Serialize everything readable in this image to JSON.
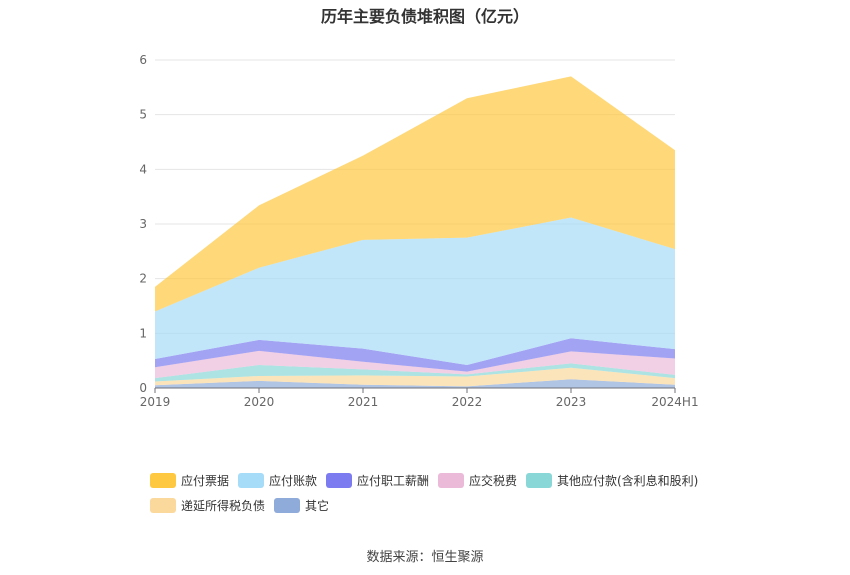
{
  "chart_data": {
    "type": "area",
    "stacked": true,
    "title": "历年主要负债堆积图（亿元）",
    "categories": [
      "2019",
      "2020",
      "2021",
      "2022",
      "2023",
      "2024H1"
    ],
    "ylim": [
      0,
      6
    ],
    "yticks": [
      0,
      1,
      2,
      3,
      4,
      5,
      6
    ],
    "grid": true,
    "legend_position": "bottom",
    "series": [
      {
        "name": "其它",
        "color": "#8fabd9",
        "values": [
          0.05,
          0.13,
          0.06,
          0.03,
          0.16,
          0.06
        ]
      },
      {
        "name": "递延所得税负债",
        "color": "#fbd99d",
        "values": [
          0.07,
          0.09,
          0.17,
          0.18,
          0.21,
          0.12
        ]
      },
      {
        "name": "其他应付款(含利息和股利)",
        "color": "#8ad7d7",
        "values": [
          0.06,
          0.2,
          0.11,
          0.04,
          0.08,
          0.06
        ]
      },
      {
        "name": "应交税费",
        "color": "#ebbad8",
        "values": [
          0.2,
          0.26,
          0.14,
          0.05,
          0.22,
          0.3
        ]
      },
      {
        "name": "应付职工薪酬",
        "color": "#7c7cf0",
        "values": [
          0.15,
          0.2,
          0.24,
          0.12,
          0.24,
          0.17
        ]
      },
      {
        "name": "应付账款",
        "color": "#a6dcf7",
        "values": [
          0.87,
          1.32,
          1.99,
          2.33,
          2.21,
          1.83
        ]
      },
      {
        "name": "应付票据",
        "color": "#fec840",
        "values": [
          0.45,
          1.14,
          1.54,
          2.55,
          2.58,
          1.81
        ]
      }
    ],
    "legend_order": [
      "应付票据",
      "应付账款",
      "应付职工薪酬",
      "应交税费",
      "其他应付款(含利息和股利)",
      "递延所得税负债",
      "其它"
    ],
    "source": "数据来源：恒生聚源"
  }
}
